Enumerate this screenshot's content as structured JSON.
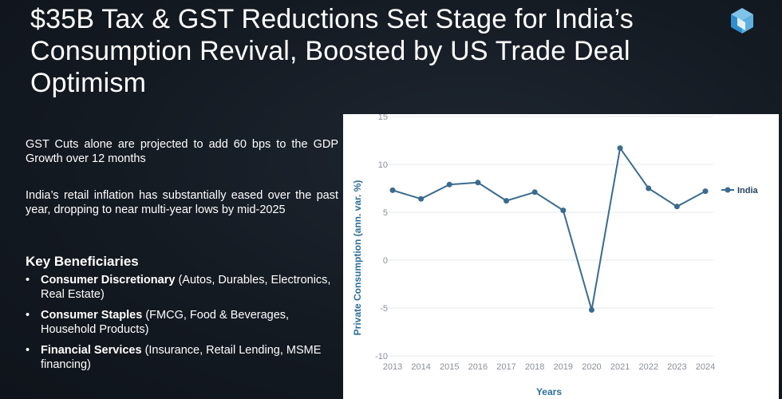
{
  "slide": {
    "title": "$35B Tax & GST Reductions Set Stage for India’s Consumption Revival, Boosted by US Trade Deal Optimism",
    "paragraph_1": "GST Cuts alone are projected to add 60 bps to the GDP Growth over 12 months",
    "paragraph_2": "India’s retail inflation has substantially eased over the past year, dropping to near multi-year lows by mid-2025",
    "key_beneficiaries": {
      "heading": "Key Beneficiaries",
      "items": [
        {
          "sector": "Consumer Discretionary",
          "detail": " (Autos, Durables, Electronics, Real Estate)"
        },
        {
          "sector": "Consumer Staples",
          "detail": " (FMCG, Food & Beverages, Household Products)"
        },
        {
          "sector": "Financial Services",
          "detail": " (Insurance, Retail Lending, MSME financing)"
        }
      ],
      "bullet_glyph": "•"
    },
    "logo_icon": "cube-logo-icon",
    "colors": {
      "background": "#141a22",
      "series": "#3a6b8f",
      "axis_label": "#2c6e9b"
    }
  },
  "chart_data": {
    "type": "line",
    "title": "",
    "xlabel": "Years",
    "ylabel": "Private Consumption (ann. var. %)",
    "x": [
      "2013",
      "2014",
      "2015",
      "2016",
      "2017",
      "2018",
      "2019",
      "2020",
      "2021",
      "2022",
      "2023",
      "2024"
    ],
    "series": [
      {
        "name": "India",
        "values": [
          7.3,
          6.4,
          7.9,
          8.1,
          6.2,
          7.1,
          5.2,
          -5.2,
          11.7,
          7.5,
          5.6,
          7.2
        ]
      }
    ],
    "ylim": [
      -10,
      15
    ],
    "yticks": [
      "-10",
      "-5",
      "0",
      "5",
      "10",
      "15"
    ],
    "grid": true,
    "legend": "right"
  }
}
